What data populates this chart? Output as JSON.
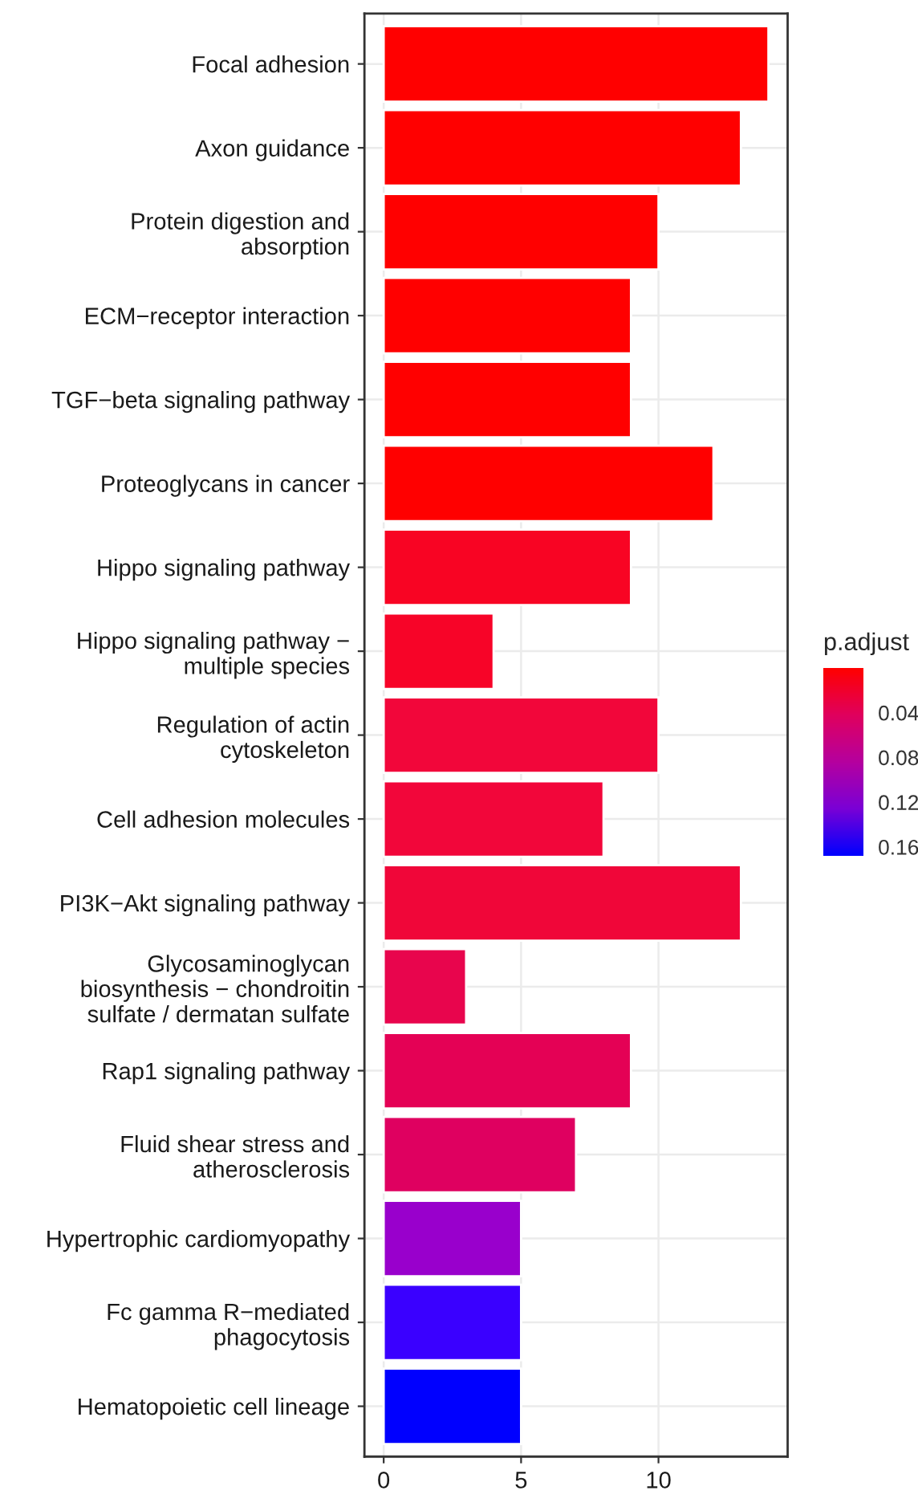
{
  "chart_data": {
    "type": "bar",
    "orientation": "horizontal",
    "categories": [
      "Focal adhesion",
      "Axon guidance",
      "Protein digestion and\nabsorption",
      "ECM−receptor interaction",
      "TGF−beta signaling pathway",
      "Proteoglycans in cancer",
      "Hippo signaling pathway",
      "Hippo signaling pathway −\nmultiple species",
      "Regulation of actin\ncytoskeleton",
      "Cell adhesion molecules",
      "PI3K−Akt signaling pathway",
      "Glycosaminoglycan\nbiosynthesis − chondroitin\nsulfate / dermatan sulfate",
      "Rap1 signaling pathway",
      "Fluid shear stress and\natherosclerosis",
      "Hypertrophic cardiomyopathy",
      "Fc gamma R−mediated\nphagocytosis",
      "Hematopoietic cell lineage"
    ],
    "values": [
      14,
      13,
      10,
      9,
      9,
      12,
      9,
      4,
      10,
      8,
      13,
      3,
      9,
      7,
      5,
      5,
      5
    ],
    "colors": [
      "#ff0000",
      "#ff0000",
      "#ff0000",
      "#ff0000",
      "#ff0000",
      "#ff0000",
      "#f80423",
      "#f70428",
      "#f2063a",
      "#f2063a",
      "#f00639",
      "#e8054d",
      "#e40155",
      "#df0060",
      "#9900cc",
      "#3a00ff",
      "#0000ff"
    ],
    "xlim": [
      -0.7,
      14.7
    ],
    "xticks": [
      0,
      5,
      10
    ],
    "clabel": "p.adjust",
    "clim": [
      0.0,
      0.168
    ],
    "cticks": [
      0.04,
      0.08,
      0.12,
      0.16
    ],
    "grid": true
  }
}
